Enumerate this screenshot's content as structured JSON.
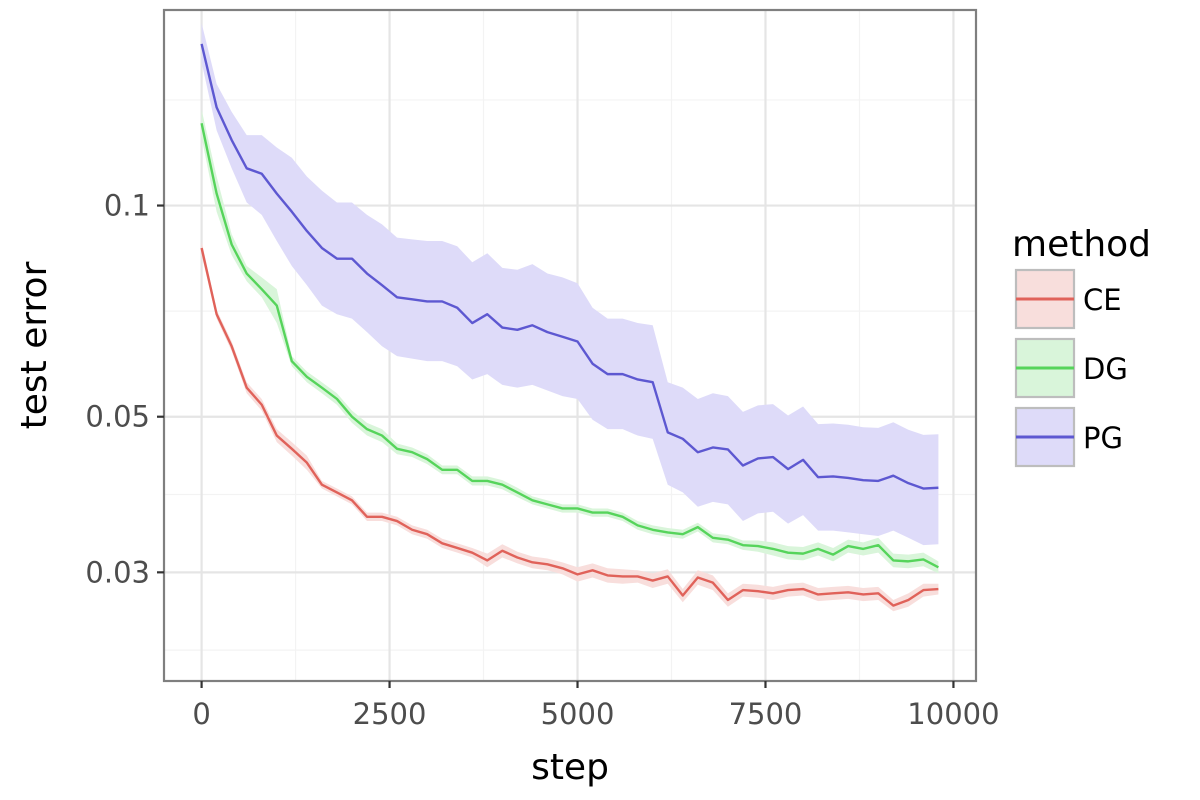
{
  "chart_data": {
    "type": "line",
    "title": "",
    "xlabel": "step",
    "ylabel": "test error",
    "xlim": [
      -500,
      10300
    ],
    "ylim": [
      0.021,
      0.19
    ],
    "yscale": "log",
    "x_ticks": [
      0,
      2500,
      5000,
      7500,
      10000
    ],
    "x_tick_labels": [
      "0",
      "2500",
      "5000",
      "7500",
      "10000"
    ],
    "y_ticks": [
      0.03,
      0.05,
      0.1
    ],
    "y_tick_labels": [
      "0.03",
      "0.05",
      "0.1"
    ],
    "grid": true,
    "legend": {
      "title": "method",
      "position": "right"
    },
    "x": [
      0,
      200,
      400,
      600,
      800,
      1000,
      1200,
      1400,
      1600,
      1800,
      2000,
      2200,
      2400,
      2600,
      2800,
      3000,
      3200,
      3400,
      3600,
      3800,
      4000,
      4200,
      4400,
      4600,
      4800,
      5000,
      5200,
      5400,
      5600,
      5800,
      6000,
      6200,
      6400,
      6600,
      6800,
      7000,
      7200,
      7400,
      7600,
      7800,
      8000,
      8200,
      8400,
      8600,
      8800,
      9000,
      9200,
      9400,
      9600,
      9800
    ],
    "series": [
      {
        "name": "CE",
        "color": "#E0625A",
        "fill": "#F8DEDC",
        "values": [
          0.087,
          0.07,
          0.063,
          0.055,
          0.052,
          0.047,
          0.045,
          0.043,
          0.04,
          0.039,
          0.038,
          0.036,
          0.036,
          0.0355,
          0.0345,
          0.034,
          0.033,
          0.0325,
          0.032,
          0.0312,
          0.0322,
          0.0315,
          0.031,
          0.0308,
          0.0304,
          0.0298,
          0.0302,
          0.0297,
          0.0296,
          0.0296,
          0.0292,
          0.0296,
          0.0278,
          0.0295,
          0.029,
          0.0274,
          0.0283,
          0.0282,
          0.028,
          0.0283,
          0.0284,
          0.0279,
          0.028,
          0.0281,
          0.0279,
          0.028,
          0.0269,
          0.0274,
          0.0283,
          0.0284
        ],
        "lower": [
          0.085,
          0.069,
          0.062,
          0.054,
          0.051,
          0.046,
          0.044,
          0.042,
          0.0395,
          0.0385,
          0.0375,
          0.0355,
          0.0355,
          0.035,
          0.034,
          0.0335,
          0.0325,
          0.032,
          0.0315,
          0.0305,
          0.0315,
          0.0309,
          0.0304,
          0.0302,
          0.0298,
          0.0291,
          0.0295,
          0.029,
          0.0289,
          0.029,
          0.0285,
          0.0289,
          0.0272,
          0.0288,
          0.0283,
          0.0268,
          0.0277,
          0.0276,
          0.0274,
          0.0277,
          0.0278,
          0.0273,
          0.0274,
          0.0275,
          0.0273,
          0.0274,
          0.0264,
          0.0268,
          0.0277,
          0.0279
        ],
        "upper": [
          0.089,
          0.071,
          0.064,
          0.056,
          0.053,
          0.048,
          0.046,
          0.044,
          0.0405,
          0.0395,
          0.0385,
          0.0365,
          0.0365,
          0.036,
          0.035,
          0.0345,
          0.0335,
          0.033,
          0.0325,
          0.0319,
          0.0329,
          0.0321,
          0.0316,
          0.0314,
          0.031,
          0.0305,
          0.0309,
          0.0304,
          0.0303,
          0.0302,
          0.0299,
          0.0303,
          0.0284,
          0.0302,
          0.0297,
          0.028,
          0.0289,
          0.0288,
          0.0286,
          0.0289,
          0.029,
          0.0285,
          0.0286,
          0.0287,
          0.0285,
          0.0286,
          0.0274,
          0.028,
          0.0289,
          0.0289
        ]
      },
      {
        "name": "DG",
        "color": "#56D45B",
        "fill": "#D9F5DA",
        "values": [
          0.131,
          0.104,
          0.088,
          0.08,
          0.076,
          0.072,
          0.06,
          0.057,
          0.055,
          0.053,
          0.05,
          0.048,
          0.047,
          0.045,
          0.0445,
          0.0435,
          0.042,
          0.042,
          0.0405,
          0.0405,
          0.04,
          0.039,
          0.038,
          0.0375,
          0.037,
          0.037,
          0.0365,
          0.0365,
          0.036,
          0.035,
          0.0345,
          0.0342,
          0.034,
          0.0348,
          0.0336,
          0.0334,
          0.0328,
          0.0327,
          0.0324,
          0.032,
          0.0319,
          0.0324,
          0.0318,
          0.0327,
          0.0324,
          0.0328,
          0.0312,
          0.0311,
          0.0313,
          0.0305
        ],
        "lower": [
          0.125,
          0.098,
          0.085,
          0.078,
          0.074,
          0.068,
          0.059,
          0.056,
          0.054,
          0.052,
          0.049,
          0.047,
          0.046,
          0.0442,
          0.0438,
          0.0428,
          0.0414,
          0.0414,
          0.0399,
          0.0399,
          0.0394,
          0.0384,
          0.0375,
          0.037,
          0.0365,
          0.0365,
          0.036,
          0.036,
          0.0355,
          0.0345,
          0.034,
          0.0337,
          0.0335,
          0.0343,
          0.0331,
          0.0329,
          0.0323,
          0.0321,
          0.0317,
          0.0313,
          0.0312,
          0.0317,
          0.0311,
          0.032,
          0.0317,
          0.032,
          0.0305,
          0.0304,
          0.0306,
          0.0299
        ],
        "upper": [
          0.137,
          0.11,
          0.091,
          0.082,
          0.079,
          0.076,
          0.061,
          0.058,
          0.056,
          0.054,
          0.051,
          0.049,
          0.048,
          0.0458,
          0.0452,
          0.0442,
          0.0426,
          0.0426,
          0.0411,
          0.0411,
          0.0406,
          0.0396,
          0.0385,
          0.038,
          0.0375,
          0.0375,
          0.037,
          0.037,
          0.0365,
          0.0355,
          0.035,
          0.0347,
          0.0345,
          0.0353,
          0.0341,
          0.0339,
          0.0333,
          0.0333,
          0.0331,
          0.0327,
          0.0326,
          0.0331,
          0.0325,
          0.0334,
          0.0331,
          0.0336,
          0.0319,
          0.0318,
          0.032,
          0.0311
        ]
      },
      {
        "name": "PG",
        "color": "#5D58D1",
        "fill": "#DEDBF9",
        "values": [
          0.17,
          0.138,
          0.124,
          0.113,
          0.111,
          0.104,
          0.098,
          0.092,
          0.087,
          0.084,
          0.084,
          0.08,
          0.077,
          0.074,
          0.0735,
          0.073,
          0.073,
          0.0715,
          0.068,
          0.07,
          0.067,
          0.0665,
          0.0675,
          0.066,
          0.065,
          0.064,
          0.0595,
          0.0575,
          0.0575,
          0.0565,
          0.056,
          0.0475,
          0.0465,
          0.0445,
          0.0452,
          0.0449,
          0.0426,
          0.0436,
          0.0438,
          0.0421,
          0.0434,
          0.041,
          0.0411,
          0.0409,
          0.0406,
          0.0405,
          0.0412,
          0.0402,
          0.0395,
          0.0396
        ],
        "lower": [
          0.16,
          0.128,
          0.113,
          0.101,
          0.097,
          0.089,
          0.082,
          0.077,
          0.072,
          0.07,
          0.069,
          0.066,
          0.063,
          0.061,
          0.0605,
          0.06,
          0.06,
          0.059,
          0.0565,
          0.0575,
          0.0555,
          0.055,
          0.0555,
          0.0545,
          0.0535,
          0.053,
          0.0495,
          0.048,
          0.048,
          0.047,
          0.0465,
          0.04,
          0.039,
          0.0372,
          0.0378,
          0.0375,
          0.0355,
          0.0364,
          0.0366,
          0.0352,
          0.0362,
          0.0344,
          0.0344,
          0.0342,
          0.034,
          0.0338,
          0.0344,
          0.0336,
          0.0328,
          0.0329
        ],
        "upper": [
          0.182,
          0.149,
          0.136,
          0.126,
          0.126,
          0.121,
          0.117,
          0.11,
          0.105,
          0.101,
          0.101,
          0.097,
          0.094,
          0.09,
          0.0895,
          0.089,
          0.089,
          0.0875,
          0.083,
          0.0855,
          0.0815,
          0.081,
          0.0825,
          0.08,
          0.079,
          0.0775,
          0.0715,
          0.069,
          0.069,
          0.068,
          0.0675,
          0.056,
          0.055,
          0.053,
          0.054,
          0.0535,
          0.0508,
          0.0519,
          0.0521,
          0.0502,
          0.0517,
          0.0488,
          0.0489,
          0.0487,
          0.0483,
          0.0482,
          0.0491,
          0.0479,
          0.0471,
          0.0472
        ]
      }
    ]
  }
}
